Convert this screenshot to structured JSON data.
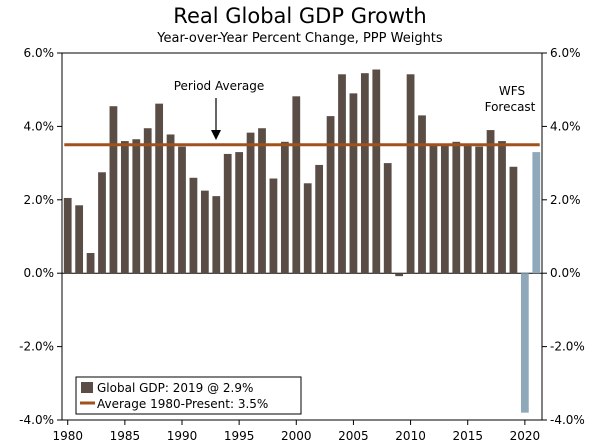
{
  "chart_data": {
    "type": "bar",
    "title": "Real Global GDP Growth",
    "subtitle": "Year-over-Year Percent Change, PPP Weights",
    "ylim": [
      -4.0,
      6.0
    ],
    "y_ticks": [
      6.0,
      4.0,
      2.0,
      0.0,
      -2.0,
      -4.0
    ],
    "y_tick_labels": [
      "6.0%",
      "4.0%",
      "2.0%",
      "0.0%",
      "-2.0%",
      "-4.0%"
    ],
    "x_tick_labels": [
      "1980",
      "1985",
      "1990",
      "1995",
      "2000",
      "2005",
      "2010",
      "2015",
      "2020"
    ],
    "x_tick_years": [
      1980,
      1985,
      1990,
      1995,
      2000,
      2005,
      2010,
      2015,
      2020
    ],
    "series": [
      {
        "name": "Global GDP: 2019 @ 2.9%",
        "color": "#5a4d45",
        "years": [
          1980,
          1981,
          1982,
          1983,
          1984,
          1985,
          1986,
          1987,
          1988,
          1989,
          1990,
          1991,
          1992,
          1993,
          1994,
          1995,
          1996,
          1997,
          1998,
          1999,
          2000,
          2001,
          2002,
          2003,
          2004,
          2005,
          2006,
          2007,
          2008,
          2009,
          2010,
          2011,
          2012,
          2013,
          2014,
          2015,
          2016,
          2017,
          2018,
          2019
        ],
        "values": [
          2.05,
          1.85,
          0.55,
          2.75,
          4.55,
          3.6,
          3.65,
          3.95,
          4.62,
          3.78,
          3.45,
          2.6,
          2.25,
          2.1,
          3.25,
          3.3,
          3.83,
          3.95,
          2.58,
          3.58,
          4.82,
          2.45,
          2.95,
          4.28,
          5.42,
          4.9,
          5.45,
          5.55,
          3.0,
          -0.08,
          5.42,
          4.3,
          3.5,
          3.5,
          3.58,
          3.5,
          3.45,
          3.9,
          3.6,
          2.9
        ]
      },
      {
        "name": "WFS Forecast",
        "color": "#8fa9bb",
        "years": [
          2020,
          2021
        ],
        "values": [
          -3.8,
          3.3
        ]
      }
    ],
    "average": {
      "label": "Average 1980-Present: 3.5%",
      "value": 3.5,
      "color": "#a0521c"
    },
    "annotations": {
      "period_average": "Period Average",
      "forecast_line1": "WFS",
      "forecast_line2": "Forecast"
    },
    "legend": {
      "position": "bottom-left"
    }
  }
}
